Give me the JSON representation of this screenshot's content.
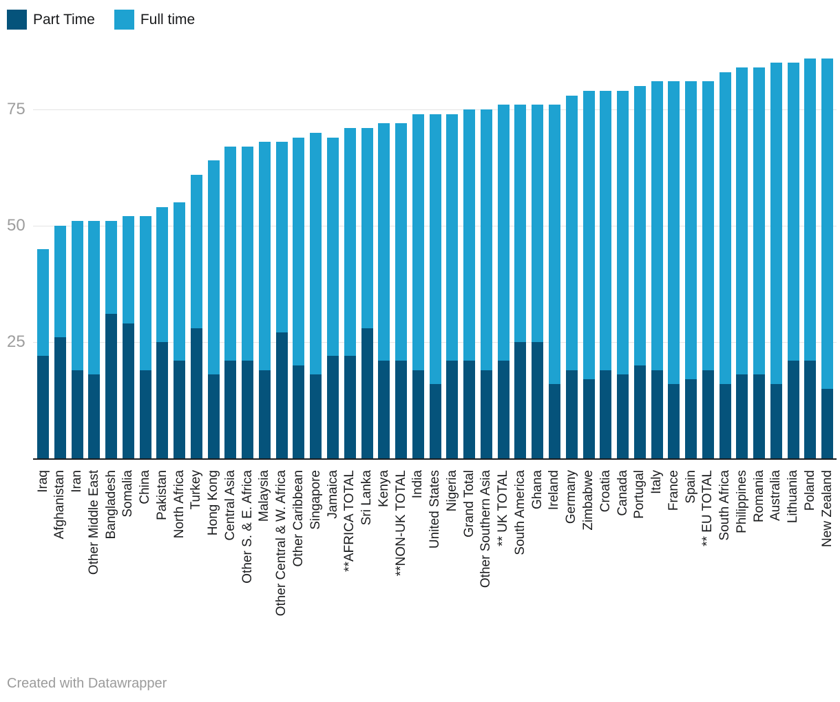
{
  "legend": {
    "items": [
      {
        "label": "Part Time",
        "color": "#05537B"
      },
      {
        "label": "Full time",
        "color": "#1EA2D1"
      }
    ]
  },
  "y_axis": {
    "ticks": [
      25,
      50,
      75
    ]
  },
  "footer": {
    "credit": "Created with Datawrapper"
  },
  "chart_data": {
    "type": "bar",
    "stacked": true,
    "title": "",
    "xlabel": "",
    "ylabel": "",
    "ylim": [
      0,
      90
    ],
    "grid": "horizontal",
    "gridlines": [
      25,
      50,
      75
    ],
    "legend_position": "top-left",
    "categories": [
      "Iraq",
      "Afghanistan",
      "Iran",
      "Other Middle East",
      "Bangladesh",
      "Somalia",
      "China",
      "Pakistan",
      "North Africa",
      "Turkey",
      "Hong Kong",
      "Central Asia",
      "Other S. & E. Africa",
      "Malaysia",
      "Other Central & W. Africa",
      "Other Caribbean",
      "Singapore",
      "Jamaica",
      "**AFRICA TOTAL",
      "Sri Lanka",
      "Kenya",
      "**NON-UK TOTAL",
      "India",
      "United States",
      "Nigeria",
      "Grand Total",
      "Other Southern Asia",
      "** UK TOTAL",
      "South America",
      "Ghana",
      "Ireland",
      "Germany",
      "Zimbabwe",
      "Croatia",
      "Canada",
      "Portugal",
      "Italy",
      "France",
      "Spain",
      "** EU TOTAL",
      "South Africa",
      "Philippines",
      "Romania",
      "Australia",
      "Lithuania",
      "Poland",
      "New Zealand"
    ],
    "series": [
      {
        "name": "Part Time",
        "color": "#05537B",
        "values": [
          22,
          26,
          19,
          18,
          31,
          29,
          19,
          25,
          21,
          28,
          18,
          21,
          21,
          19,
          27,
          20,
          18,
          22,
          22,
          28,
          21,
          21,
          19,
          16,
          21,
          21,
          19,
          21,
          25,
          25,
          16,
          19,
          17,
          19,
          18,
          20,
          19,
          16,
          17,
          19,
          16,
          18,
          18,
          16,
          21,
          21,
          15
        ]
      },
      {
        "name": "Full time",
        "color": "#1EA2D1",
        "values": [
          23,
          24,
          32,
          33,
          20,
          23,
          33,
          29,
          34,
          33,
          46,
          46,
          46,
          49,
          41,
          49,
          52,
          47,
          49,
          43,
          51,
          51,
          55,
          58,
          53,
          54,
          56,
          55,
          51,
          51,
          60,
          59,
          62,
          60,
          61,
          60,
          62,
          65,
          64,
          62,
          67,
          66,
          66,
          69,
          64,
          65,
          71
        ]
      }
    ],
    "stack_totals": [
      45,
      50,
      51,
      51,
      51,
      52,
      52,
      54,
      55,
      61,
      64,
      67,
      67,
      68,
      68,
      69,
      70,
      69,
      71,
      71,
      72,
      72,
      74,
      74,
      74,
      75,
      75,
      76,
      76,
      76,
      76,
      78,
      79,
      79,
      79,
      80,
      81,
      81,
      81,
      81,
      83,
      84,
      84,
      85,
      85,
      86,
      86
    ]
  }
}
